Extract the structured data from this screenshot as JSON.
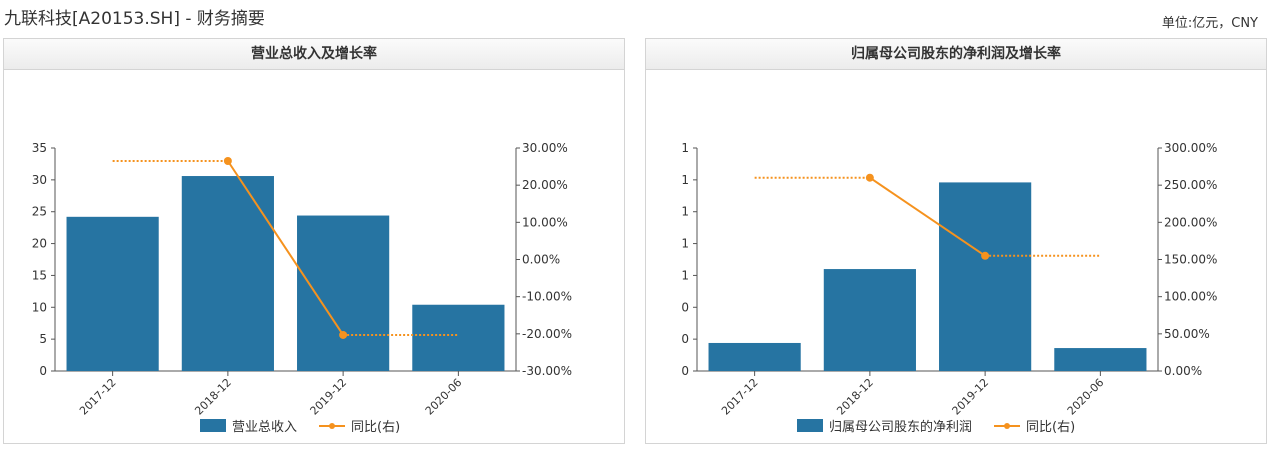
{
  "header": {
    "title": "九联科技[A20153.SH] - 财务摘要",
    "unit": "单位:亿元，CNY"
  },
  "colors": {
    "bar": "#2674a2",
    "line": "#f5921e"
  },
  "chart_data": [
    {
      "type": "bar",
      "title": "营业总收入及增长率",
      "categories": [
        "2017-12",
        "2018-12",
        "2019-12",
        "2020-06"
      ],
      "series": [
        {
          "name": "营业总收入",
          "type": "bar",
          "axis": "left",
          "values": [
            24.2,
            30.6,
            24.4,
            10.4
          ]
        },
        {
          "name": "同比(右)",
          "type": "line",
          "axis": "right",
          "values": [
            null,
            26.5,
            -20.3,
            null
          ]
        }
      ],
      "reference_lines": [
        {
          "from": "2017-12",
          "to": "2018-12",
          "value": 26.5
        },
        {
          "from": "2019-12",
          "to": "2020-06",
          "value": -20.3
        }
      ],
      "ylim": [
        0,
        35
      ],
      "yticks": [
        "0",
        "5",
        "10",
        "15",
        "20",
        "25",
        "30",
        "35"
      ],
      "y2lim": [
        -30,
        30
      ],
      "y2ticks": [
        "-30.00%",
        "-20.00%",
        "-10.00%",
        "0.00%",
        "10.00%",
        "20.00%",
        "30.00%"
      ],
      "legend": [
        "营业总收入",
        "同比(右)"
      ]
    },
    {
      "type": "bar",
      "title": "归属母公司股东的净利润及增长率",
      "categories": [
        "2017-12",
        "2018-12",
        "2019-12",
        "2020-06"
      ],
      "series": [
        {
          "name": "归属母公司股东的净利润",
          "type": "bar",
          "axis": "left",
          "values": [
            0.22,
            0.8,
            1.48,
            0.18
          ]
        },
        {
          "name": "同比(右)",
          "type": "line",
          "axis": "right",
          "values": [
            null,
            260,
            155,
            null
          ]
        }
      ],
      "reference_lines": [
        {
          "from": "2017-12",
          "to": "2018-12",
          "value": 260
        },
        {
          "from": "2019-12",
          "to": "2020-06",
          "value": 155
        }
      ],
      "ylim": [
        0,
        1.75
      ],
      "yticks": [
        "0",
        "0",
        "0",
        "1",
        "1",
        "1",
        "1",
        "1"
      ],
      "y2lim": [
        0,
        300
      ],
      "y2ticks": [
        "0.00%",
        "50.00%",
        "100.00%",
        "150.00%",
        "200.00%",
        "250.00%",
        "300.00%"
      ],
      "legend": [
        "归属母公司股东的净利润",
        "同比(右)"
      ]
    }
  ]
}
